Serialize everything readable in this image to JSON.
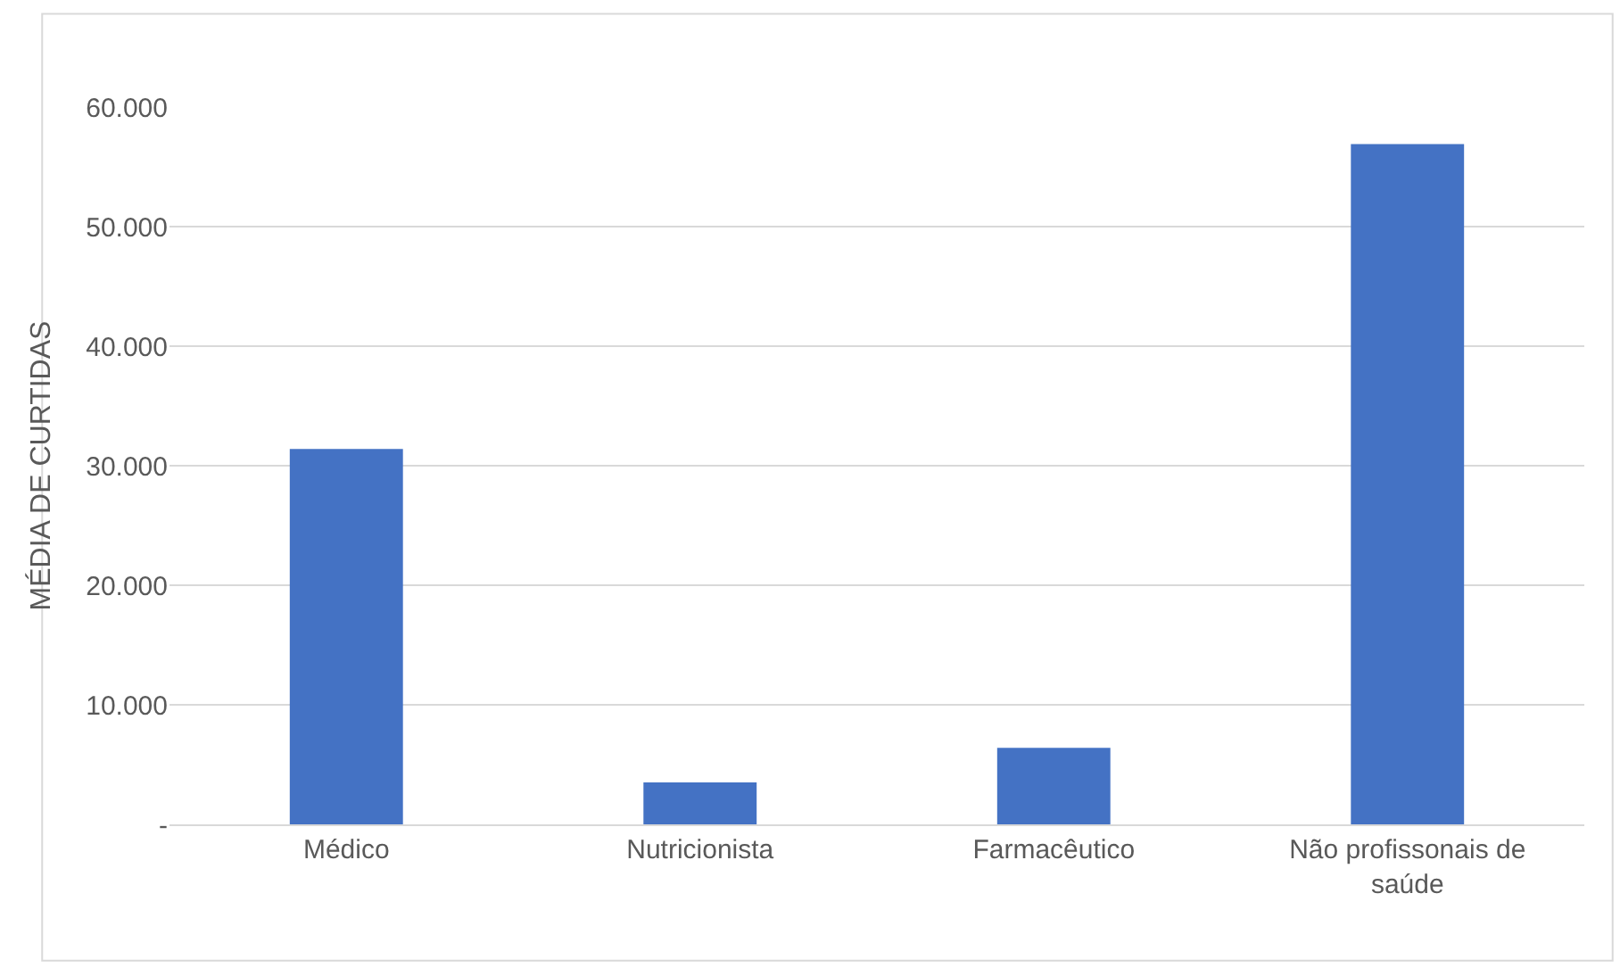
{
  "chart_data": {
    "type": "bar",
    "ylabel": "MÉDIA DE CURTIDAS",
    "categories": [
      "Médico",
      "Nutricionista",
      "Farmacêutico",
      "Não profissonais de saúde"
    ],
    "values": [
      31400,
      3500,
      6400,
      56900
    ],
    "color": "#4472c4",
    "ylim": [
      0,
      60000
    ],
    "yticks": [
      {
        "value": 0,
        "label": "-"
      },
      {
        "value": 10000,
        "label": "10.000"
      },
      {
        "value": 20000,
        "label": "20.000"
      },
      {
        "value": 30000,
        "label": "30.000"
      },
      {
        "value": 40000,
        "label": "40.000"
      },
      {
        "value": 50000,
        "label": "50.000"
      },
      {
        "value": 60000,
        "label": "60.000"
      }
    ],
    "grid": "y",
    "legend": false
  }
}
